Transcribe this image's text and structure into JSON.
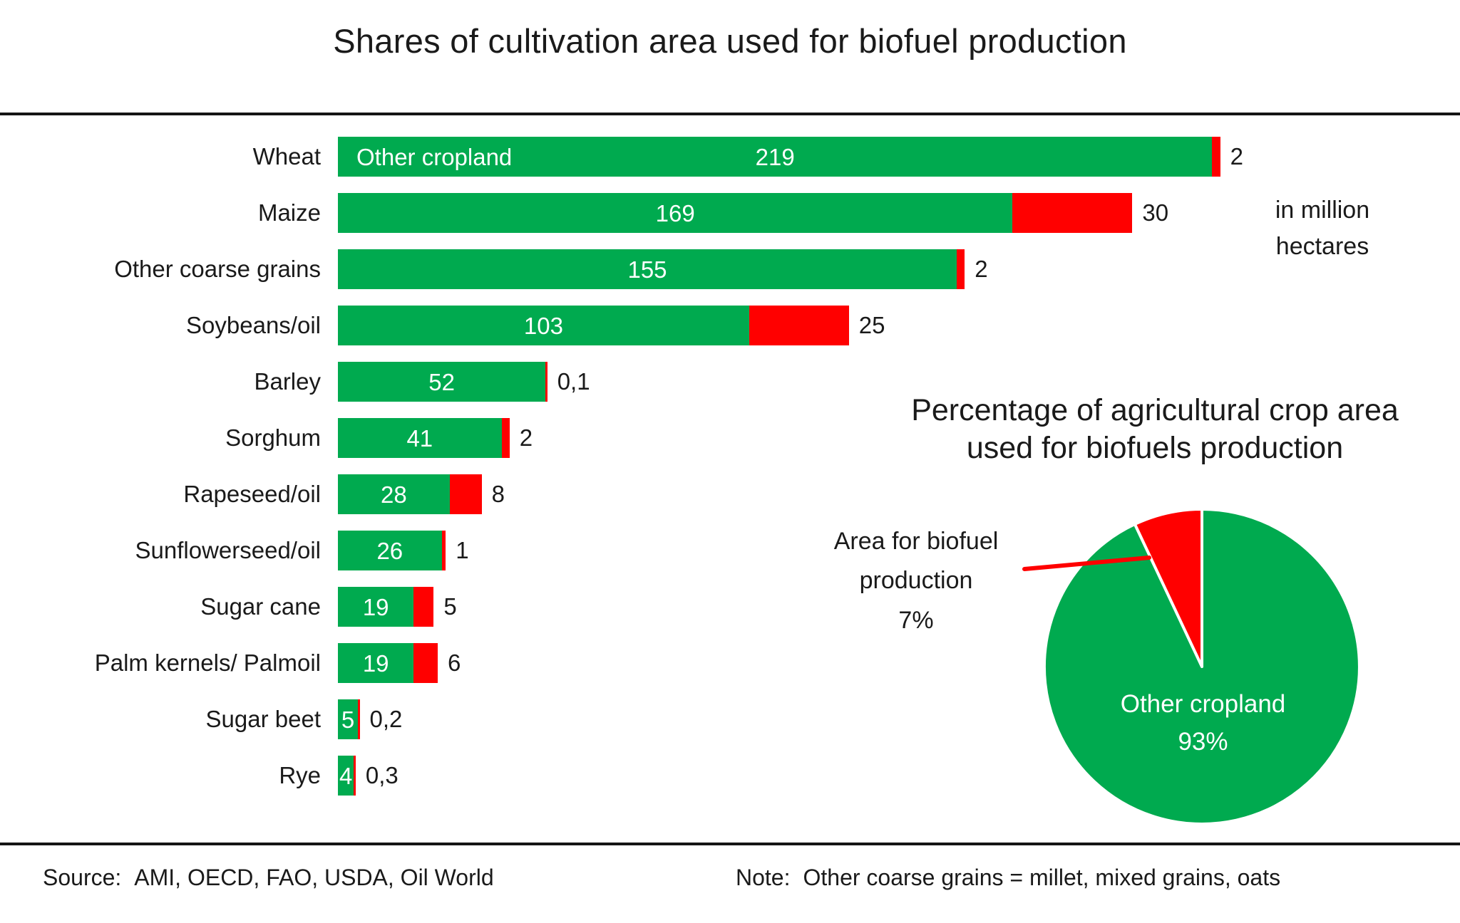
{
  "header": {
    "title": "Shares of cultivation area used for biofuel production"
  },
  "units_label": {
    "line1": "in million",
    "line2": "hectares"
  },
  "colors": {
    "green": "#00AA4F",
    "red": "#FF0000"
  },
  "chart_data": [
    {
      "type": "bar",
      "orientation": "horizontal",
      "stacked": true,
      "unit": "million hectares",
      "xlim": [
        0,
        230
      ],
      "categories": [
        "Wheat",
        "Maize",
        "Other coarse grains",
        "Soybeans/oil",
        "Barley",
        "Sorghum",
        "Rapeseed/oil",
        "Sunflowerseed/oil",
        "Sugar cane",
        "Palm kernels/ Palmoil",
        "Sugar beet",
        "Rye"
      ],
      "series": [
        {
          "name": "Other cropland",
          "color": "#00AA4F",
          "values": [
            219,
            169,
            155,
            103,
            52,
            41,
            28,
            26,
            19,
            19,
            5,
            4
          ],
          "value_labels": [
            "219",
            "169",
            "155",
            "103",
            "52",
            "41",
            "28",
            "26",
            "19",
            "19",
            "5",
            "4"
          ]
        },
        {
          "name": "Area for biofuel production",
          "color": "#FF0000",
          "values": [
            2,
            30,
            2,
            25,
            0.1,
            2,
            8,
            1,
            5,
            6,
            0.2,
            0.3
          ],
          "value_labels": [
            "2",
            "30",
            "2",
            "25",
            "0,1",
            "2",
            "8",
            "1",
            "5",
            "6",
            "0,2",
            "0,3"
          ]
        }
      ],
      "inline_series_label": {
        "row": 0,
        "text": "Other cropland"
      }
    },
    {
      "type": "pie",
      "title_lines": [
        "Percentage of agricultural crop area",
        "used for biofuels production"
      ],
      "start_angle_deg": -90,
      "direction": "clockwise",
      "slices": [
        {
          "name": "Other cropland",
          "pct": 93,
          "color": "#00AA4F",
          "inside_label_lines": [
            "Other cropland",
            "93%"
          ]
        },
        {
          "name": "Area for biofuel production",
          "pct": 7,
          "color": "#FF0000",
          "callout_label_lines": [
            "Area for biofuel",
            "production",
            "7%"
          ]
        }
      ]
    }
  ],
  "footer": {
    "source_label": "Source:",
    "source_text": "AMI, OECD, FAO, USDA, Oil World",
    "note_label": "Note:",
    "note_text": "Other coarse grains = millet, mixed grains, oats"
  }
}
